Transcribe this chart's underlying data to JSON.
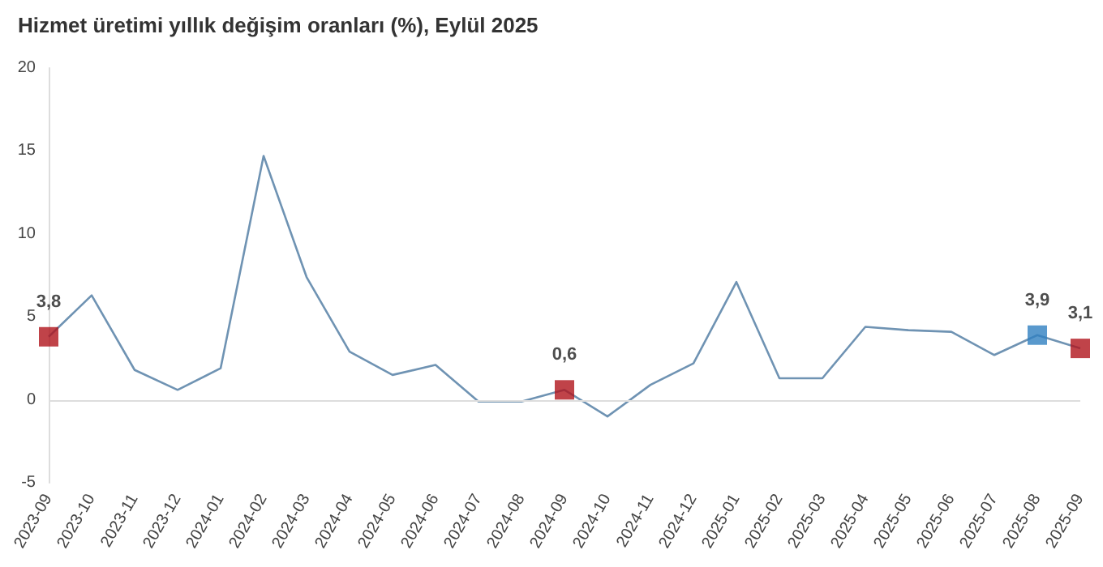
{
  "chart_data": {
    "type": "line",
    "title": "Hizmet üretimi yıllık değişim oranları (%), Eylül 2025",
    "categories": [
      "2023-09",
      "2023-10",
      "2023-11",
      "2023-12",
      "2024-01",
      "2024-02",
      "2024-03",
      "2024-04",
      "2024-05",
      "2024-06",
      "2024-07",
      "2024-08",
      "2024-09",
      "2024-10",
      "2024-11",
      "2024-12",
      "2025-01",
      "2025-02",
      "2025-03",
      "2025-04",
      "2025-05",
      "2025-06",
      "2025-07",
      "2025-08",
      "2025-09"
    ],
    "series": [
      {
        "color": "#6f93b3",
        "marker": "none",
        "values": [
          3.8,
          6.3,
          1.8,
          0.6,
          1.9,
          14.7,
          7.4,
          2.9,
          1.5,
          2.1,
          -0.1,
          -0.1,
          0.6,
          -1.0,
          0.9,
          2.2,
          7.1,
          1.3,
          1.3,
          4.4,
          4.2,
          4.1,
          2.7,
          3.9,
          3.1
        ]
      },
      {
        "type": "scatter",
        "marker": "square",
        "values": [
          3.8,
          null,
          null,
          null,
          null,
          null,
          null,
          null,
          null,
          null,
          null,
          null,
          0.6,
          null,
          null,
          null,
          null,
          null,
          null,
          null,
          null,
          null,
          null,
          3.9,
          3.1
        ],
        "colors": [
          "#b0141c",
          null,
          null,
          null,
          null,
          null,
          null,
          null,
          null,
          null,
          null,
          null,
          "#b0141c",
          null,
          null,
          null,
          null,
          null,
          null,
          null,
          null,
          null,
          null,
          "#2f7fc1",
          "#b0141c"
        ],
        "value_labels": [
          "3,8",
          null,
          null,
          null,
          null,
          null,
          null,
          null,
          null,
          null,
          null,
          null,
          "0,6",
          null,
          null,
          null,
          null,
          null,
          null,
          null,
          null,
          null,
          null,
          "3,9",
          "3,1"
        ]
      }
    ],
    "ylim": [
      -5,
      20
    ],
    "yticks": [
      -5,
      0,
      5,
      10,
      15,
      20
    ],
    "grid": false,
    "ref_lines": [
      {
        "axis": "y",
        "value": 0,
        "color": "#dddddd"
      }
    ]
  }
}
